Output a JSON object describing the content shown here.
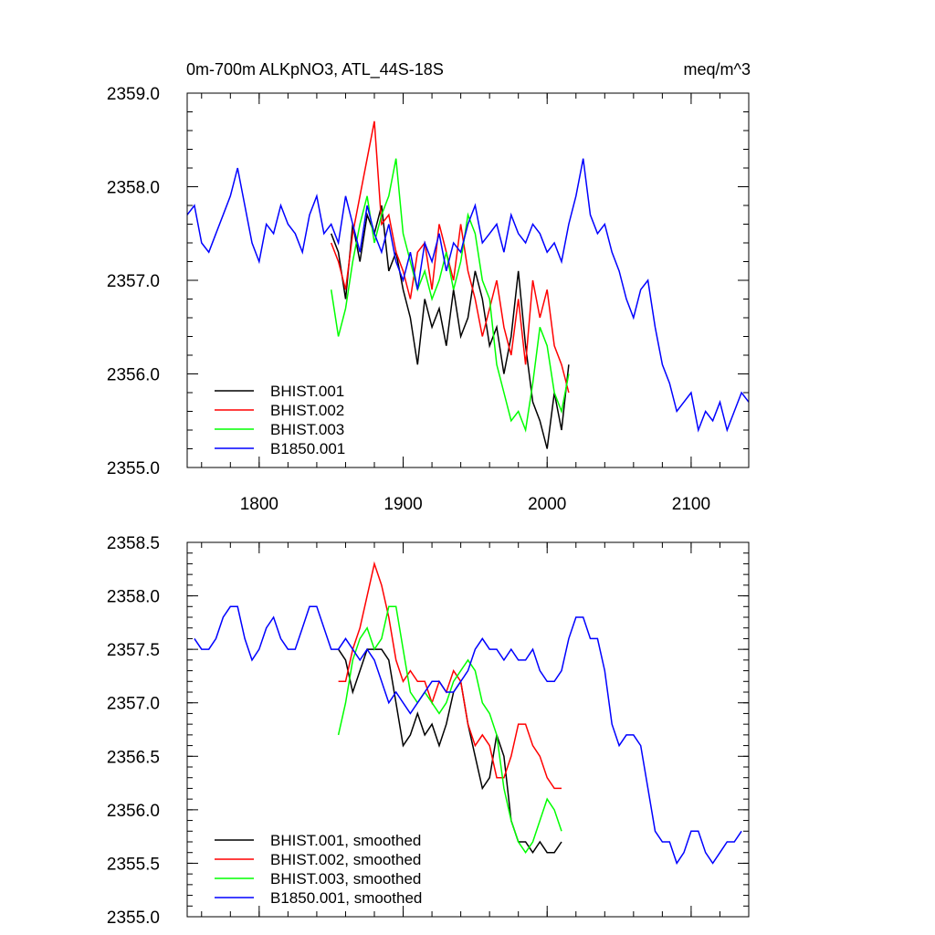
{
  "chart_data": [
    {
      "type": "line",
      "title": "0m-700m ALKpNO3, ATL_44S-18S",
      "units": "meq/m^3",
      "xlim": [
        1750,
        2140
      ],
      "ylim": [
        2355.0,
        2359.0
      ],
      "x_ticks": [
        1800,
        1900,
        2000,
        2100
      ],
      "x_tick_labels": [
        "1800",
        "1900",
        "2000",
        "2100"
      ],
      "y_ticks": [
        2355.0,
        2356.0,
        2357.0,
        2358.0,
        2359.0
      ],
      "y_tick_labels": [
        "2355.0",
        "2356.0",
        "2357.0",
        "2358.0",
        "2359.0"
      ],
      "legend": "bottom-left",
      "series": [
        {
          "name": "BHIST.001",
          "color": "#000000",
          "x": [
            1850,
            1855,
            1860,
            1865,
            1870,
            1875,
            1880,
            1885,
            1890,
            1895,
            1900,
            1905,
            1910,
            1915,
            1920,
            1925,
            1930,
            1935,
            1940,
            1945,
            1950,
            1955,
            1960,
            1965,
            1970,
            1975,
            1980,
            1985,
            1990,
            1995,
            2000,
            2005,
            2010,
            2015
          ],
          "y": [
            2357.5,
            2357.3,
            2356.8,
            2357.6,
            2357.2,
            2357.7,
            2357.5,
            2357.8,
            2357.1,
            2357.3,
            2356.9,
            2356.6,
            2356.1,
            2356.8,
            2356.5,
            2356.7,
            2356.3,
            2356.9,
            2356.4,
            2356.6,
            2357.1,
            2356.8,
            2356.3,
            2356.5,
            2356.0,
            2356.4,
            2357.1,
            2356.3,
            2355.7,
            2355.5,
            2355.2,
            2355.8,
            2355.4,
            2356.1
          ]
        },
        {
          "name": "BHIST.002",
          "color": "#ff0000",
          "x": [
            1850,
            1855,
            1860,
            1865,
            1870,
            1875,
            1880,
            1885,
            1890,
            1895,
            1900,
            1905,
            1910,
            1915,
            1920,
            1925,
            1930,
            1935,
            1940,
            1945,
            1950,
            1955,
            1960,
            1965,
            1970,
            1975,
            1980,
            1985,
            1990,
            1995,
            2000,
            2005,
            2010,
            2015
          ],
          "y": [
            2357.4,
            2357.2,
            2356.9,
            2357.5,
            2357.9,
            2358.3,
            2358.7,
            2357.6,
            2357.7,
            2357.3,
            2357.1,
            2356.8,
            2357.3,
            2357.4,
            2356.9,
            2357.6,
            2357.3,
            2357.0,
            2357.6,
            2357.1,
            2356.8,
            2356.4,
            2356.7,
            2357.0,
            2356.5,
            2356.2,
            2356.8,
            2356.1,
            2357.0,
            2356.6,
            2356.9,
            2356.3,
            2356.1,
            2355.8
          ]
        },
        {
          "name": "BHIST.003",
          "color": "#00ff00",
          "x": [
            1850,
            1855,
            1860,
            1865,
            1870,
            1875,
            1880,
            1885,
            1890,
            1895,
            1900,
            1905,
            1910,
            1915,
            1920,
            1925,
            1930,
            1935,
            1940,
            1945,
            1950,
            1955,
            1960,
            1965,
            1970,
            1975,
            1980,
            1985,
            1990,
            1995,
            2000,
            2005,
            2010,
            2015
          ],
          "y": [
            2356.9,
            2356.4,
            2356.7,
            2357.2,
            2357.6,
            2357.9,
            2357.4,
            2357.7,
            2357.9,
            2358.3,
            2357.5,
            2357.2,
            2356.9,
            2357.1,
            2356.8,
            2357.0,
            2357.3,
            2356.9,
            2357.2,
            2357.7,
            2357.5,
            2357.0,
            2356.8,
            2356.1,
            2355.8,
            2355.5,
            2355.6,
            2355.4,
            2355.9,
            2356.5,
            2356.3,
            2355.8,
            2355.6,
            2356.0
          ]
        },
        {
          "name": "B1850.001",
          "color": "#0000ff",
          "x": [
            1750,
            1755,
            1760,
            1765,
            1770,
            1775,
            1780,
            1785,
            1790,
            1795,
            1800,
            1805,
            1810,
            1815,
            1820,
            1825,
            1830,
            1835,
            1840,
            1845,
            1850,
            1855,
            1860,
            1865,
            1870,
            1875,
            1880,
            1885,
            1890,
            1895,
            1900,
            1905,
            1910,
            1915,
            1920,
            1925,
            1930,
            1935,
            1940,
            1945,
            1950,
            1955,
            1960,
            1965,
            1970,
            1975,
            1980,
            1985,
            1990,
            1995,
            2000,
            2005,
            2010,
            2015,
            2020,
            2025,
            2030,
            2035,
            2040,
            2045,
            2050,
            2055,
            2060,
            2065,
            2070,
            2075,
            2080,
            2085,
            2090,
            2095,
            2100,
            2105,
            2110,
            2115,
            2120,
            2125,
            2130,
            2135,
            2140
          ],
          "y": [
            2357.7,
            2357.8,
            2357.4,
            2357.3,
            2357.5,
            2357.7,
            2357.9,
            2358.2,
            2357.8,
            2357.4,
            2357.2,
            2357.6,
            2357.5,
            2357.8,
            2357.6,
            2357.5,
            2357.3,
            2357.7,
            2357.9,
            2357.5,
            2357.6,
            2357.4,
            2357.9,
            2357.6,
            2357.3,
            2357.8,
            2357.5,
            2357.3,
            2357.6,
            2357.2,
            2357.0,
            2357.3,
            2356.9,
            2357.4,
            2357.2,
            2357.5,
            2357.1,
            2357.4,
            2357.3,
            2357.6,
            2357.8,
            2357.4,
            2357.5,
            2357.6,
            2357.3,
            2357.7,
            2357.5,
            2357.4,
            2357.6,
            2357.5,
            2357.3,
            2357.4,
            2357.2,
            2357.6,
            2357.9,
            2358.3,
            2357.7,
            2357.5,
            2357.6,
            2357.3,
            2357.1,
            2356.8,
            2356.6,
            2356.9,
            2357.0,
            2356.5,
            2356.1,
            2355.9,
            2355.6,
            2355.7,
            2355.8,
            2355.4,
            2355.6,
            2355.5,
            2355.7,
            2355.4,
            2355.6,
            2355.8,
            2355.7
          ]
        }
      ]
    },
    {
      "type": "line",
      "title": "",
      "xlim": [
        1750,
        2140
      ],
      "ylim": [
        2355.0,
        2358.5
      ],
      "x_ticks": [
        1800,
        1900,
        2000,
        2100
      ],
      "y_ticks": [
        2355.0,
        2355.5,
        2356.0,
        2356.5,
        2357.0,
        2357.5,
        2358.0,
        2358.5
      ],
      "y_tick_labels": [
        "2355.0",
        "2355.5",
        "2356.0",
        "2356.5",
        "2357.0",
        "2357.5",
        "2358.0",
        "2358.5"
      ],
      "legend": "bottom-left",
      "series": [
        {
          "name": "BHIST.001, smoothed",
          "color": "#000000",
          "x": [
            1855,
            1860,
            1865,
            1870,
            1875,
            1880,
            1885,
            1890,
            1895,
            1900,
            1905,
            1910,
            1915,
            1920,
            1925,
            1930,
            1935,
            1940,
            1945,
            1950,
            1955,
            1960,
            1965,
            1970,
            1975,
            1980,
            1985,
            1990,
            1995,
            2000,
            2005,
            2010
          ],
          "y": [
            2357.5,
            2357.4,
            2357.1,
            2357.3,
            2357.5,
            2357.5,
            2357.5,
            2357.4,
            2357.0,
            2356.6,
            2356.7,
            2356.9,
            2356.7,
            2356.8,
            2356.6,
            2356.8,
            2357.1,
            2357.2,
            2356.8,
            2356.5,
            2356.2,
            2356.3,
            2356.7,
            2356.5,
            2355.9,
            2355.7,
            2355.7,
            2355.6,
            2355.7,
            2355.6,
            2355.6,
            2355.7
          ]
        },
        {
          "name": "BHIST.002, smoothed",
          "color": "#ff0000",
          "x": [
            1855,
            1860,
            1865,
            1870,
            1875,
            1880,
            1885,
            1890,
            1895,
            1900,
            1905,
            1910,
            1915,
            1920,
            1925,
            1930,
            1935,
            1940,
            1945,
            1950,
            1955,
            1960,
            1965,
            1970,
            1975,
            1980,
            1985,
            1990,
            1995,
            2000,
            2005,
            2010
          ],
          "y": [
            2357.2,
            2357.2,
            2357.5,
            2357.7,
            2358.0,
            2358.3,
            2358.1,
            2357.8,
            2357.4,
            2357.2,
            2357.3,
            2357.2,
            2357.2,
            2357.0,
            2357.2,
            2357.1,
            2357.3,
            2357.2,
            2356.8,
            2356.6,
            2356.7,
            2356.6,
            2356.3,
            2356.3,
            2356.5,
            2356.8,
            2356.8,
            2356.6,
            2356.5,
            2356.3,
            2356.2,
            2356.2
          ]
        },
        {
          "name": "BHIST.003, smoothed",
          "color": "#00ff00",
          "x": [
            1855,
            1860,
            1865,
            1870,
            1875,
            1880,
            1885,
            1890,
            1895,
            1900,
            1905,
            1910,
            1915,
            1920,
            1925,
            1930,
            1935,
            1940,
            1945,
            1950,
            1955,
            1960,
            1965,
            1970,
            1975,
            1980,
            1985,
            1990,
            1995,
            2000,
            2005,
            2010
          ],
          "y": [
            2356.7,
            2357.0,
            2357.4,
            2357.6,
            2357.7,
            2357.5,
            2357.6,
            2357.9,
            2357.9,
            2357.5,
            2357.1,
            2357.0,
            2357.1,
            2357.0,
            2356.9,
            2357.0,
            2357.2,
            2357.3,
            2357.4,
            2357.3,
            2357.0,
            2356.9,
            2356.7,
            2356.2,
            2355.9,
            2355.7,
            2355.6,
            2355.7,
            2355.9,
            2356.1,
            2356.0,
            2355.8
          ]
        },
        {
          "name": "B1850.001, smoothed",
          "color": "#0000ff",
          "x": [
            1755,
            1760,
            1765,
            1770,
            1775,
            1780,
            1785,
            1790,
            1795,
            1800,
            1805,
            1810,
            1815,
            1820,
            1825,
            1830,
            1835,
            1840,
            1845,
            1850,
            1855,
            1860,
            1865,
            1870,
            1875,
            1880,
            1885,
            1890,
            1895,
            1900,
            1905,
            1910,
            1915,
            1920,
            1925,
            1930,
            1935,
            1940,
            1945,
            1950,
            1955,
            1960,
            1965,
            1970,
            1975,
            1980,
            1985,
            1990,
            1995,
            2000,
            2005,
            2010,
            2015,
            2020,
            2025,
            2030,
            2035,
            2040,
            2045,
            2050,
            2055,
            2060,
            2065,
            2070,
            2075,
            2080,
            2085,
            2090,
            2095,
            2100,
            2105,
            2110,
            2115,
            2120,
            2125,
            2130,
            2135
          ],
          "y": [
            2357.6,
            2357.5,
            2357.5,
            2357.6,
            2357.8,
            2357.9,
            2357.9,
            2357.6,
            2357.4,
            2357.5,
            2357.7,
            2357.8,
            2357.6,
            2357.5,
            2357.5,
            2357.7,
            2357.9,
            2357.9,
            2357.7,
            2357.5,
            2357.5,
            2357.6,
            2357.5,
            2357.4,
            2357.5,
            2357.4,
            2357.2,
            2357.0,
            2357.1,
            2357.0,
            2356.9,
            2357.0,
            2357.1,
            2357.2,
            2357.2,
            2357.1,
            2357.1,
            2357.2,
            2357.3,
            2357.5,
            2357.6,
            2357.5,
            2357.5,
            2357.4,
            2357.5,
            2357.4,
            2357.4,
            2357.5,
            2357.3,
            2357.2,
            2357.2,
            2357.3,
            2357.6,
            2357.8,
            2357.8,
            2357.6,
            2357.6,
            2357.3,
            2356.8,
            2356.6,
            2356.7,
            2356.7,
            2356.6,
            2356.2,
            2355.8,
            2355.7,
            2355.7,
            2355.5,
            2355.6,
            2355.8,
            2355.8,
            2355.6,
            2355.5,
            2355.6,
            2355.7,
            2355.7,
            2355.8
          ]
        }
      ]
    }
  ]
}
